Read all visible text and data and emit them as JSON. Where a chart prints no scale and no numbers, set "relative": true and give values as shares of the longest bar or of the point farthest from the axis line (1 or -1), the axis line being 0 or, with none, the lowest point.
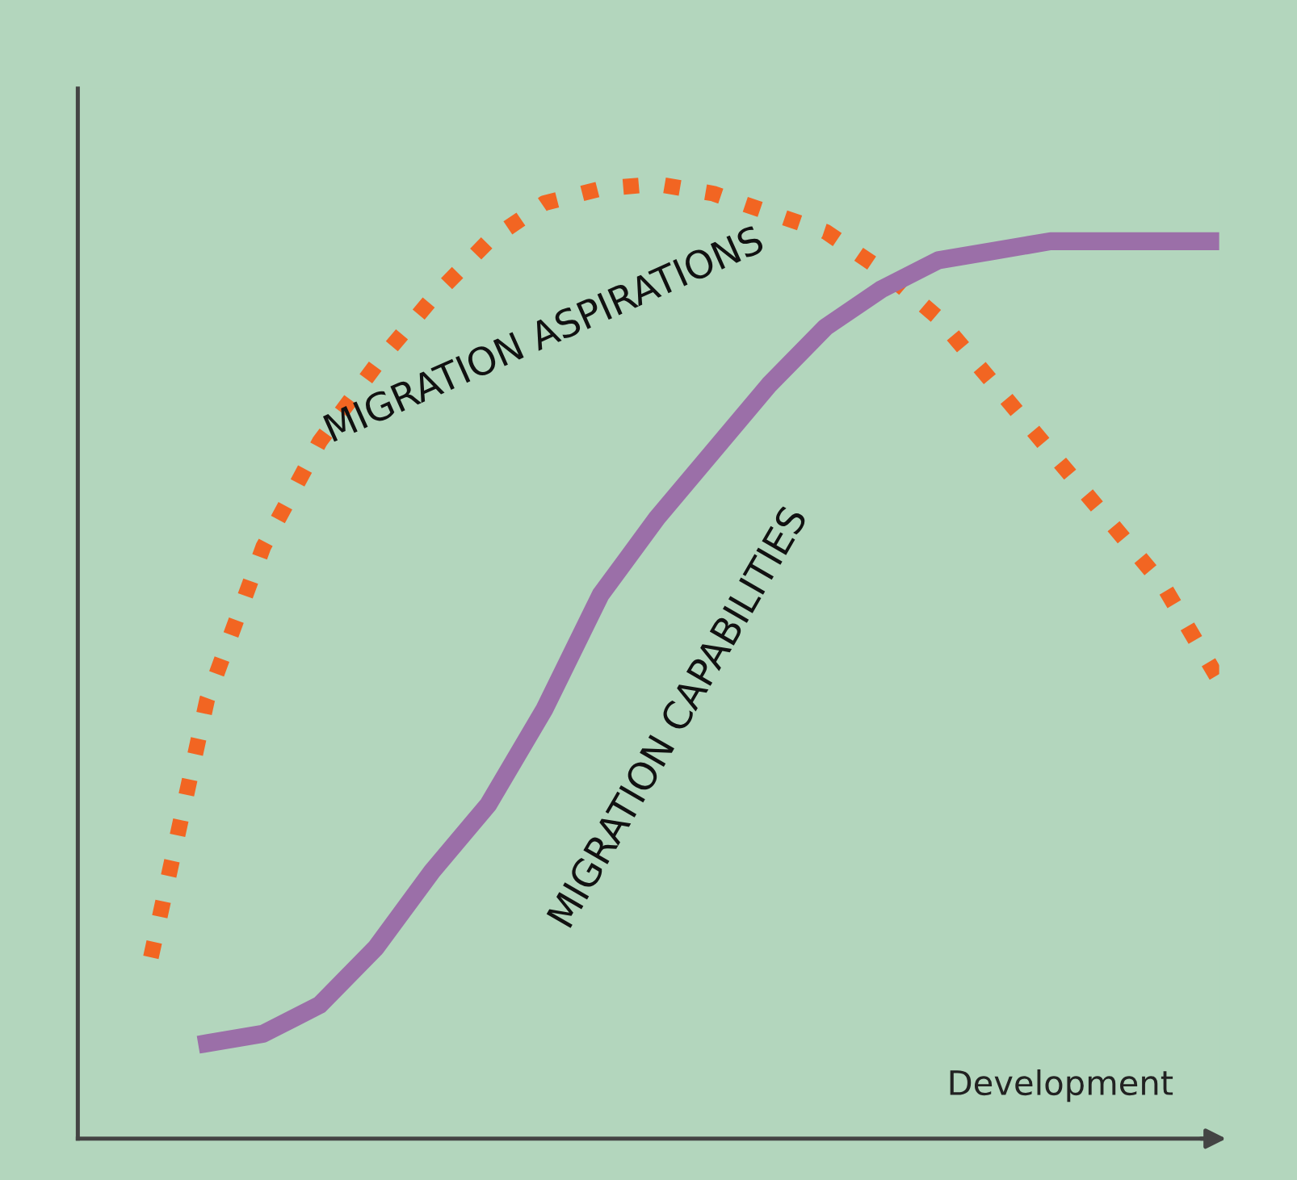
{
  "chart_data": {
    "type": "line",
    "relative": true,
    "xlabel": "Development",
    "categories": [
      null,
      null,
      null,
      null,
      null,
      null,
      null,
      null,
      null,
      null,
      null,
      null,
      null,
      null,
      null,
      null,
      null,
      null,
      null,
      null
    ],
    "series": [
      {
        "name": "MIGRATION ASPIRATIONS",
        "color": "#f26522",
        "line_style": "dotted",
        "values": [
          0.19,
          0.46,
          0.62,
          0.73,
          0.81,
          0.88,
          0.94,
          0.98,
          0.995,
          1.0,
          0.99,
          0.97,
          0.95,
          0.91,
          0.86,
          0.79,
          0.72,
          0.65,
          0.58,
          0.48
        ]
      },
      {
        "name": "MIGRATION CAPABILITIES",
        "color": "#9b6fa8",
        "line_style": "solid",
        "values": [
          null,
          0.1,
          0.11,
          0.14,
          0.2,
          0.28,
          0.35,
          0.45,
          0.57,
          0.65,
          0.72,
          0.79,
          0.85,
          0.89,
          0.92,
          0.93,
          0.94,
          0.94,
          0.94,
          0.94
        ]
      }
    ],
    "legend": false,
    "marker": "none",
    "tick_labels": false
  }
}
